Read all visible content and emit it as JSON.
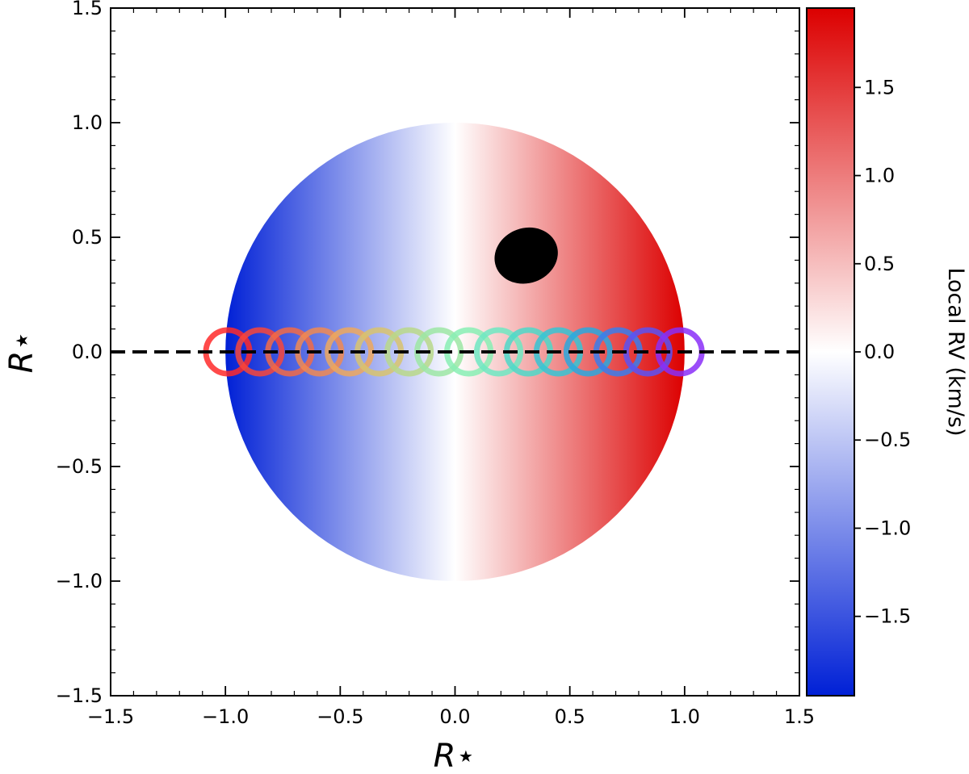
{
  "chart_data": {
    "type": "scatter",
    "title": "",
    "xlabel": "R⋆",
    "ylabel": "R⋆",
    "xlim": [
      -1.5,
      1.5
    ],
    "ylim": [
      -1.5,
      1.5
    ],
    "x_ticks": [
      "−1.5",
      "−1.0",
      "−0.5",
      "0.0",
      "0.5",
      "1.0",
      "1.5"
    ],
    "y_ticks": [
      "−1.5",
      "−1.0",
      "−0.5",
      "0.0",
      "0.5",
      "1.0",
      "1.5"
    ],
    "grid": false,
    "stellar_disk": {
      "center": [
        0.0,
        0.0
      ],
      "radius": 1.0,
      "colormap": "blue-white-red",
      "rv_range_kms": [
        -1.95,
        1.95
      ]
    },
    "spot": {
      "center": [
        0.31,
        0.42
      ],
      "semi_axes": [
        0.14,
        0.12
      ],
      "color": "#000000"
    },
    "transit_chord": {
      "y": 0.0,
      "style": "dashed",
      "color": "#000000"
    },
    "planet_positions": {
      "radius": 0.095,
      "x": [
        -0.99,
        -0.85,
        -0.72,
        -0.59,
        -0.46,
        -0.33,
        -0.2,
        -0.07,
        0.06,
        0.19,
        0.32,
        0.45,
        0.58,
        0.71,
        0.84,
        0.98
      ],
      "y": [
        0,
        0,
        0,
        0,
        0,
        0,
        0,
        0,
        0,
        0,
        0,
        0,
        0,
        0,
        0,
        0
      ],
      "colors": [
        "#ff2a2a",
        "#f8463a",
        "#f26b45",
        "#f08a52",
        "#eda85e",
        "#d8c36f",
        "#b8d88a",
        "#9ce6a4",
        "#88eeb4",
        "#6ee8c2",
        "#4ed8c8",
        "#36c4d4",
        "#2aa8de",
        "#3a7eec",
        "#5a52f4",
        "#8a2ef8"
      ]
    },
    "colorbar": {
      "label": "Local RV (km/s)",
      "range": [
        -1.95,
        1.95
      ],
      "ticks": [
        -1.5,
        -1.0,
        -0.5,
        0.0,
        0.5,
        1.0,
        1.5
      ],
      "tick_labels": [
        "−1.5",
        "−1.0",
        "−0.5",
        "0.0",
        "0.5",
        "1.0",
        "1.5"
      ],
      "colors": {
        "low": "#0020d6",
        "mid": "#ffffff",
        "high": "#dc0000"
      }
    }
  }
}
